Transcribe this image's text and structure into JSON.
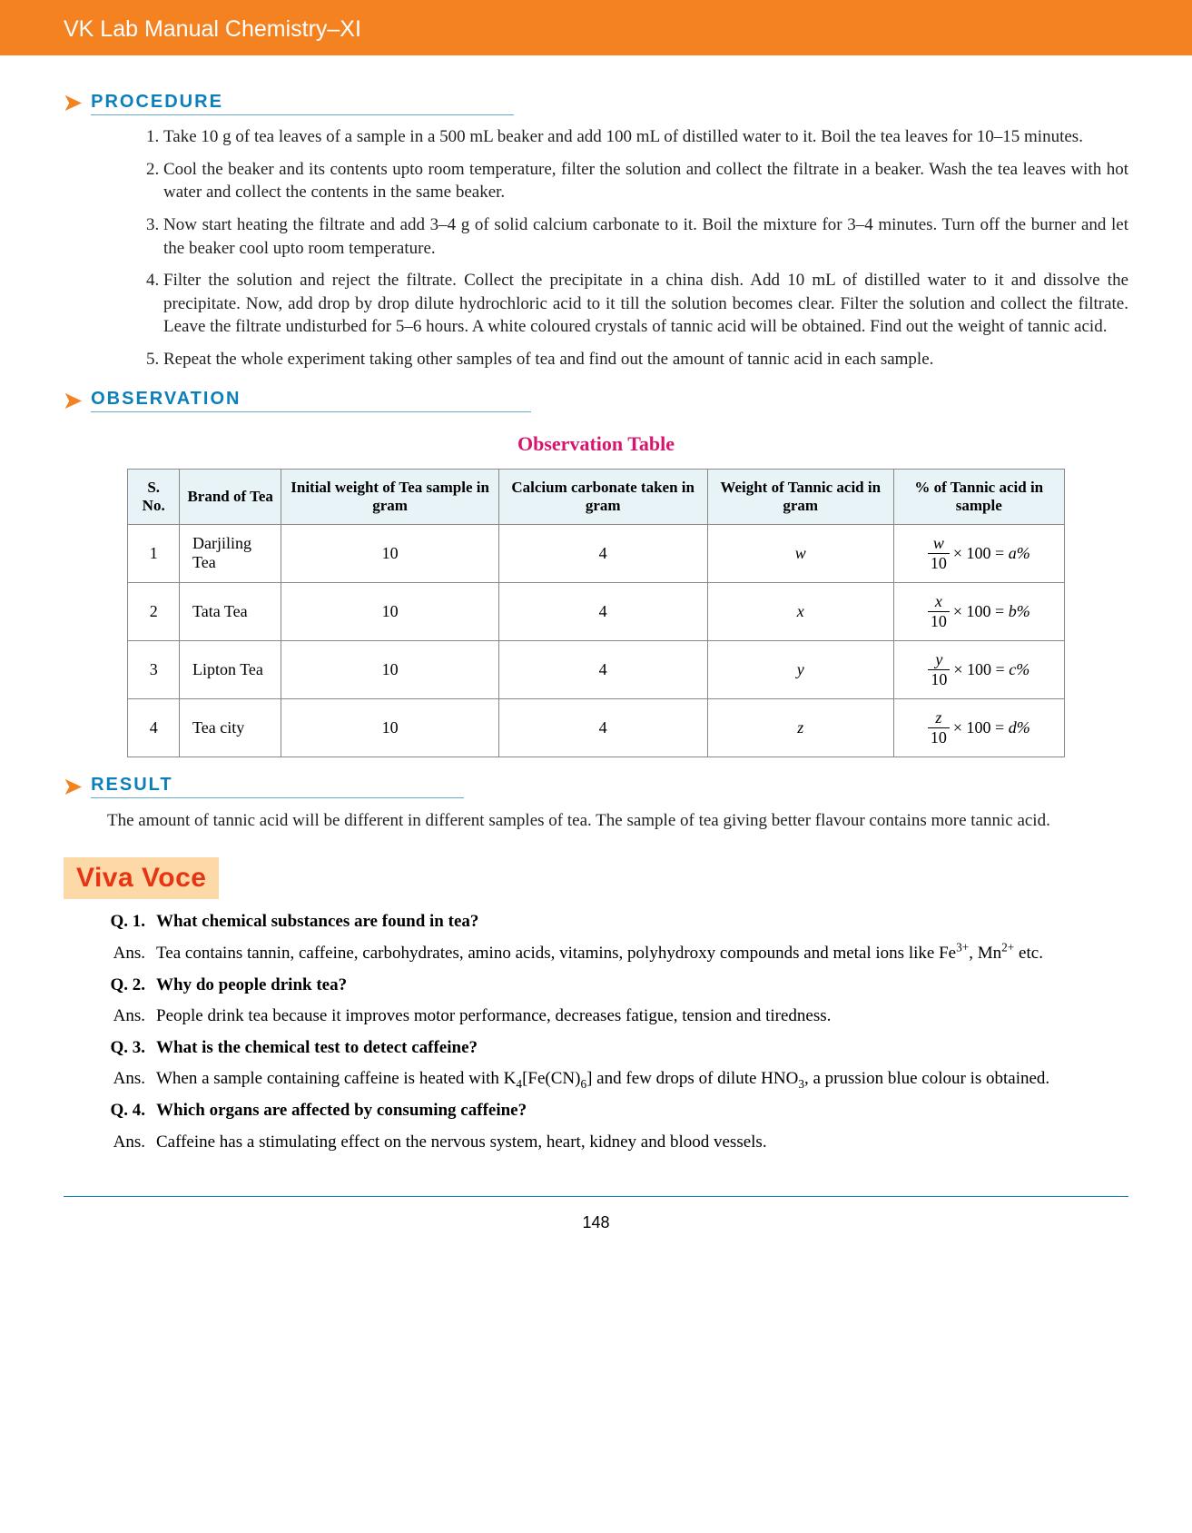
{
  "header": {
    "title": "VK Lab Manual Chemistry–XI"
  },
  "sections": {
    "procedure": {
      "heading": "PROCEDURE",
      "steps": [
        "Take 10 g of tea leaves of a sample in a 500 mL beaker and add 100 mL of distilled water to it. Boil the tea leaves for 10–15 minutes.",
        "Cool the beaker and its contents upto room temperature, filter the solution and collect the filtrate in a beaker. Wash the tea leaves with hot water and collect the contents in the same beaker.",
        "Now start heating the filtrate and add 3–4 g of solid calcium carbonate to it. Boil the mixture for 3–4 minutes. Turn off the burner and let the beaker cool upto room temperature.",
        "Filter the solution and reject the filtrate. Collect the precipitate in a china dish. Add 10 mL of distilled water to it and dissolve the precipitate. Now, add drop by drop dilute hydrochloric acid to it till the solution becomes clear. Filter the solution and collect the filtrate. Leave the filtrate undisturbed for 5–6 hours. A white coloured crystals of tannic acid will be obtained. Find out the weight of tannic acid.",
        "Repeat the whole experiment taking other samples of tea and find out the amount of tannic acid in each sample."
      ]
    },
    "observation": {
      "heading": "OBSERVATION",
      "table_title": "Observation Table",
      "columns": [
        "S. No.",
        "Brand of Tea",
        "Initial weight of Tea sample in gram",
        "Calcium carbonate taken in gram",
        "Weight of Tannic acid in gram",
        "% of Tannic acid in sample"
      ],
      "rows": [
        {
          "sno": "1",
          "brand": "Darjiling Tea",
          "initial": "10",
          "cacarb": "4",
          "weight_var": "w",
          "formula_num": "w",
          "formula_den": "10",
          "formula_rhs": "a%"
        },
        {
          "sno": "2",
          "brand": "Tata Tea",
          "initial": "10",
          "cacarb": "4",
          "weight_var": "x",
          "formula_num": "x",
          "formula_den": "10",
          "formula_rhs": "b%"
        },
        {
          "sno": "3",
          "brand": "Lipton Tea",
          "initial": "10",
          "cacarb": "4",
          "weight_var": "y",
          "formula_num": "y",
          "formula_den": "10",
          "formula_rhs": "c%"
        },
        {
          "sno": "4",
          "brand": "Tea city",
          "initial": "10",
          "cacarb": "4",
          "weight_var": "z",
          "formula_num": "z",
          "formula_den": "10",
          "formula_rhs": "d%"
        }
      ]
    },
    "result": {
      "heading": "RESULT",
      "text": "The amount of tannic acid will be different in different samples of tea. The sample of tea giving better flavour contains more tannic acid."
    }
  },
  "viva": {
    "title": "Viva Voce",
    "items": [
      {
        "qnum": "Q. 1.",
        "q": "What chemical substances are found in tea?",
        "a_html": "Tea contains tannin, caffeine, carbohydrates, amino acids, vitamins, polyhydroxy compounds and metal ions like Fe<sup>3+</sup>, Mn<sup>2+</sup> etc."
      },
      {
        "qnum": "Q. 2.",
        "q": "Why do people drink tea?",
        "a_html": "People drink tea because it improves motor performance, decreases fatigue, tension and tiredness."
      },
      {
        "qnum": "Q. 3.",
        "q": "What is the chemical test to detect caffeine?",
        "a_html": "When a sample containing caffeine is heated with K<sub>4</sub>[Fe(CN)<sub>6</sub>] and few drops of dilute HNO<sub>3</sub>, a prussion blue colour is obtained."
      },
      {
        "qnum": "Q. 4.",
        "q": "Which organs are affected by consuming caffeine?",
        "a_html": "Caffeine has a stimulating effect on the nervous system, heart, kidney and blood vessels."
      }
    ],
    "ans_label": "Ans."
  },
  "page_number": "148",
  "colors": {
    "header_bg": "#f58220",
    "heading_color": "#0b7fba",
    "arrow_color": "#f58220",
    "table_header_bg": "#e8f3f8",
    "obs_title_color": "#d6156c",
    "viva_bg": "#fdd9a8",
    "viva_color": "#e63514"
  }
}
